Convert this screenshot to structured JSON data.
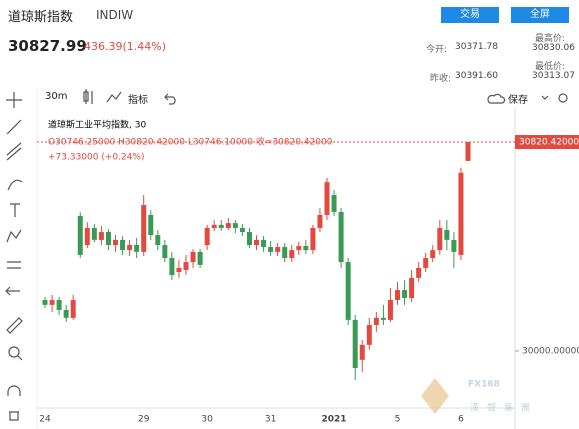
{
  "header": {
    "title": "道琼斯指数",
    "code": "INDIW",
    "buttons": [
      "交易",
      "全屏"
    ],
    "price": "30827.99",
    "change": "436.39(1.44%)",
    "stats": [
      {
        "label": "今开:",
        "value": "30371.78"
      },
      {
        "label": "最高价:",
        "value": "30830.06"
      },
      {
        "label": "昨收:",
        "value": "30391.60"
      },
      {
        "label": "最低价:",
        "value": "30313.07"
      }
    ]
  },
  "toolbar": {
    "interval": "30m",
    "indicators": "指标",
    "save": "保存"
  },
  "watermark": {
    "brand": "FX168",
    "subtitle": "漢聲集團"
  },
  "chart_data": {
    "type": "candlestick",
    "title": "道琼斯工业平均指数, 30",
    "ohlc_label": "O30746.25000 H30820.42000 L30746.10000 收=30820.42000",
    "change_label": "+73.33000 (+0.24%)",
    "up_color": "#e34a3f",
    "down_color": "#3a9a55",
    "categories": [
      "24",
      null,
      null,
      null,
      null,
      null,
      null,
      null,
      null,
      null,
      null,
      null,
      null,
      null,
      "29",
      null,
      null,
      null,
      null,
      null,
      null,
      null,
      null,
      "30",
      null,
      null,
      null,
      null,
      null,
      null,
      null,
      null,
      "31",
      null,
      null,
      null,
      null,
      null,
      null,
      null,
      null,
      "2021",
      null,
      null,
      null,
      null,
      null,
      null,
      null,
      null,
      "5",
      null,
      null,
      null,
      null,
      null,
      null,
      null,
      null,
      "6",
      null
    ],
    "open": [
      30200,
      30181,
      30200,
      30161,
      30130,
      30530,
      30416,
      30483,
      30436,
      30467,
      30416,
      30436,
      30396,
      30416,
      30389,
      30534,
      30455,
      30416,
      30365,
      30310,
      30318,
      30349,
      30389,
      30416,
      30483,
      30495,
      30483,
      30502,
      30483,
      30467,
      30416,
      30436,
      30408,
      30389,
      30408,
      30365,
      30396,
      30412,
      30396,
      30483,
      30534,
      30612,
      30546,
      30349,
      30122,
      29965,
      30024,
      30102,
      30130,
      30122,
      30200,
      30239,
      30208,
      30287,
      30326,
      30365,
      30396,
      30475,
      30436,
      30377,
      30746.25
    ],
    "high": [
      30212,
      30220,
      30212,
      30181,
      30220,
      30545,
      30506,
      30498,
      30491,
      30479,
      30455,
      30451,
      30436,
      30444,
      30612,
      30553,
      30475,
      30436,
      30389,
      30357,
      30377,
      30400,
      30400,
      30495,
      30514,
      30514,
      30522,
      30514,
      30498,
      30483,
      30455,
      30451,
      30432,
      30424,
      30424,
      30416,
      30428,
      30436,
      30495,
      30561,
      30679,
      30632,
      30561,
      30365,
      30141,
      30043,
      30130,
      30153,
      30181,
      30247,
      30271,
      30279,
      30318,
      30349,
      30385,
      30416,
      30514,
      30514,
      30467,
      30720,
      30820.42
    ],
    "low": [
      30169,
      30153,
      30141,
      30114,
      30122,
      30365,
      30404,
      30428,
      30416,
      30396,
      30389,
      30377,
      30373,
      30365,
      30373,
      30436,
      30396,
      30349,
      30279,
      30287,
      30298,
      30326,
      30326,
      30396,
      30471,
      30471,
      30475,
      30463,
      30451,
      30404,
      30396,
      30389,
      30373,
      30373,
      30349,
      30349,
      30377,
      30381,
      30381,
      30467,
      30514,
      30530,
      30326,
      30102,
      29886,
      29918,
      30004,
      30075,
      30102,
      30114,
      30181,
      30181,
      30192,
      30271,
      30310,
      30349,
      30377,
      30396,
      30326,
      30357,
      30746.1
    ],
    "close": [
      30181,
      30200,
      30161,
      30130,
      30200,
      30377,
      30483,
      30436,
      30467,
      30416,
      30436,
      30396,
      30416,
      30389,
      30573,
      30455,
      30416,
      30365,
      30298,
      30326,
      30349,
      30389,
      30338,
      30483,
      30495,
      30483,
      30502,
      30483,
      30467,
      30416,
      30436,
      30408,
      30389,
      30408,
      30365,
      30396,
      30412,
      30396,
      30483,
      30534,
      30663,
      30546,
      30349,
      30122,
      29933,
      30024,
      30102,
      30130,
      30122,
      30200,
      30239,
      30208,
      30287,
      30326,
      30365,
      30396,
      30483,
      30436,
      30389,
      30700,
      30820.42
    ],
    "last_price": {
      "value": 30820.42,
      "label": "30820.42000"
    },
    "ylim": [
      29776,
      30954
    ],
    "yticks": [
      {
        "value": 30000,
        "label": "30000.00000"
      }
    ]
  }
}
